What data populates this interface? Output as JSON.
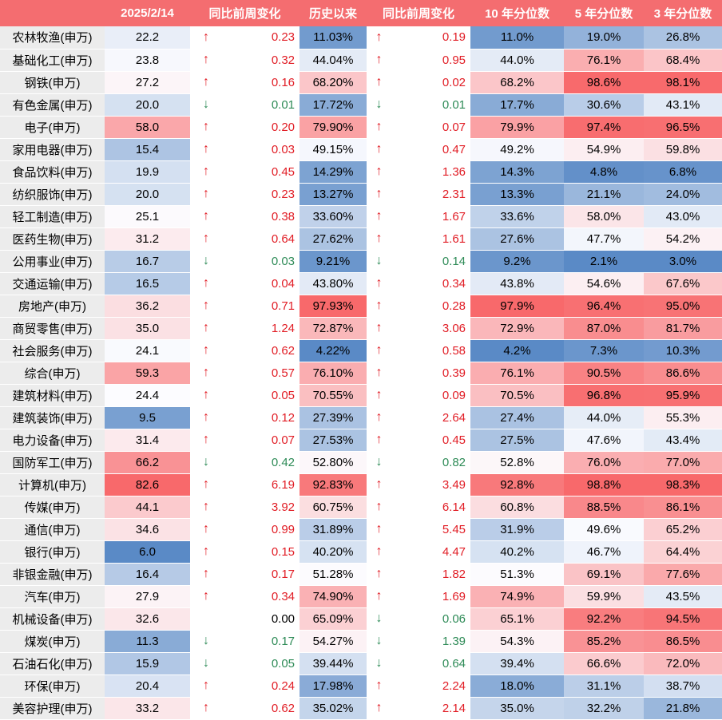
{
  "table": {
    "headers": [
      "",
      "2025/2/14",
      "同比前周变化",
      "历史以来",
      "同比前周变化",
      "10 年分位数",
      "5 年分位数",
      "3 年分位数"
    ],
    "rows": [
      {
        "name": "农林牧渔(申万)",
        "pe": "22.2",
        "pe_dir": "up",
        "pe_chg": "0.23",
        "hist": "11.03%",
        "hist_dir": "up",
        "hist_chg": "0.19",
        "p10": "11.0%",
        "p5": "19.0%",
        "p3": "26.8%"
      },
      {
        "name": "基础化工(申万)",
        "pe": "23.8",
        "pe_dir": "up",
        "pe_chg": "0.32",
        "hist": "44.04%",
        "hist_dir": "up",
        "hist_chg": "0.95",
        "p10": "44.0%",
        "p5": "76.1%",
        "p3": "68.4%"
      },
      {
        "name": "钢铁(申万)",
        "pe": "27.2",
        "pe_dir": "up",
        "pe_chg": "0.16",
        "hist": "68.20%",
        "hist_dir": "up",
        "hist_chg": "0.02",
        "p10": "68.2%",
        "p5": "98.6%",
        "p3": "98.1%"
      },
      {
        "name": "有色金属(申万)",
        "pe": "20.0",
        "pe_dir": "down",
        "pe_chg": "0.01",
        "hist": "17.72%",
        "hist_dir": "down",
        "hist_chg": "0.01",
        "p10": "17.7%",
        "p5": "30.6%",
        "p3": "43.1%"
      },
      {
        "name": "电子(申万)",
        "pe": "58.0",
        "pe_dir": "up",
        "pe_chg": "0.20",
        "hist": "79.90%",
        "hist_dir": "up",
        "hist_chg": "0.07",
        "p10": "79.9%",
        "p5": "97.4%",
        "p3": "96.5%"
      },
      {
        "name": "家用电器(申万)",
        "pe": "15.4",
        "pe_dir": "up",
        "pe_chg": "0.03",
        "hist": "49.15%",
        "hist_dir": "up",
        "hist_chg": "0.47",
        "p10": "49.2%",
        "p5": "54.9%",
        "p3": "59.8%"
      },
      {
        "name": "食品饮料(申万)",
        "pe": "19.9",
        "pe_dir": "up",
        "pe_chg": "0.45",
        "hist": "14.29%",
        "hist_dir": "up",
        "hist_chg": "1.36",
        "p10": "14.3%",
        "p5": "4.8%",
        "p3": "6.8%"
      },
      {
        "name": "纺织服饰(申万)",
        "pe": "20.0",
        "pe_dir": "up",
        "pe_chg": "0.23",
        "hist": "13.27%",
        "hist_dir": "up",
        "hist_chg": "2.31",
        "p10": "13.3%",
        "p5": "21.1%",
        "p3": "24.0%"
      },
      {
        "name": "轻工制造(申万)",
        "pe": "25.1",
        "pe_dir": "up",
        "pe_chg": "0.38",
        "hist": "33.60%",
        "hist_dir": "up",
        "hist_chg": "1.67",
        "p10": "33.6%",
        "p5": "58.0%",
        "p3": "43.0%"
      },
      {
        "name": "医药生物(申万)",
        "pe": "31.2",
        "pe_dir": "up",
        "pe_chg": "0.64",
        "hist": "27.62%",
        "hist_dir": "up",
        "hist_chg": "1.61",
        "p10": "27.6%",
        "p5": "47.7%",
        "p3": "54.2%"
      },
      {
        "name": "公用事业(申万)",
        "pe": "16.7",
        "pe_dir": "down",
        "pe_chg": "0.03",
        "hist": "9.21%",
        "hist_dir": "down",
        "hist_chg": "0.14",
        "p10": "9.2%",
        "p5": "2.1%",
        "p3": "3.0%"
      },
      {
        "name": "交通运输(申万)",
        "pe": "16.5",
        "pe_dir": "up",
        "pe_chg": "0.04",
        "hist": "43.80%",
        "hist_dir": "up",
        "hist_chg": "0.34",
        "p10": "43.8%",
        "p5": "54.6%",
        "p3": "67.6%"
      },
      {
        "name": "房地产(申万)",
        "pe": "36.2",
        "pe_dir": "up",
        "pe_chg": "0.71",
        "hist": "97.93%",
        "hist_dir": "up",
        "hist_chg": "0.28",
        "p10": "97.9%",
        "p5": "96.4%",
        "p3": "95.0%"
      },
      {
        "name": "商贸零售(申万)",
        "pe": "35.0",
        "pe_dir": "up",
        "pe_chg": "1.24",
        "hist": "72.87%",
        "hist_dir": "up",
        "hist_chg": "3.06",
        "p10": "72.9%",
        "p5": "87.0%",
        "p3": "81.7%"
      },
      {
        "name": "社会服务(申万)",
        "pe": "24.1",
        "pe_dir": "up",
        "pe_chg": "0.62",
        "hist": "4.22%",
        "hist_dir": "up",
        "hist_chg": "0.58",
        "p10": "4.2%",
        "p5": "7.3%",
        "p3": "10.3%"
      },
      {
        "name": "综合(申万)",
        "pe": "59.3",
        "pe_dir": "up",
        "pe_chg": "0.57",
        "hist": "76.10%",
        "hist_dir": "up",
        "hist_chg": "0.39",
        "p10": "76.1%",
        "p5": "90.5%",
        "p3": "86.6%"
      },
      {
        "name": "建筑材料(申万)",
        "pe": "24.4",
        "pe_dir": "up",
        "pe_chg": "0.05",
        "hist": "70.55%",
        "hist_dir": "up",
        "hist_chg": "0.09",
        "p10": "70.5%",
        "p5": "96.8%",
        "p3": "95.9%"
      },
      {
        "name": "建筑装饰(申万)",
        "pe": "9.5",
        "pe_dir": "up",
        "pe_chg": "0.12",
        "hist": "27.39%",
        "hist_dir": "up",
        "hist_chg": "2.64",
        "p10": "27.4%",
        "p5": "44.0%",
        "p3": "55.3%"
      },
      {
        "name": "电力设备(申万)",
        "pe": "31.4",
        "pe_dir": "up",
        "pe_chg": "0.07",
        "hist": "27.53%",
        "hist_dir": "up",
        "hist_chg": "0.45",
        "p10": "27.5%",
        "p5": "47.6%",
        "p3": "43.4%"
      },
      {
        "name": "国防军工(申万)",
        "pe": "66.2",
        "pe_dir": "down",
        "pe_chg": "0.42",
        "hist": "52.80%",
        "hist_dir": "down",
        "hist_chg": "0.82",
        "p10": "52.8%",
        "p5": "76.0%",
        "p3": "77.0%"
      },
      {
        "name": "计算机(申万)",
        "pe": "82.6",
        "pe_dir": "up",
        "pe_chg": "6.19",
        "hist": "92.83%",
        "hist_dir": "up",
        "hist_chg": "3.49",
        "p10": "92.8%",
        "p5": "98.8%",
        "p3": "98.3%"
      },
      {
        "name": "传媒(申万)",
        "pe": "44.1",
        "pe_dir": "up",
        "pe_chg": "3.92",
        "hist": "60.75%",
        "hist_dir": "up",
        "hist_chg": "6.14",
        "p10": "60.8%",
        "p5": "88.5%",
        "p3": "86.1%"
      },
      {
        "name": "通信(申万)",
        "pe": "34.6",
        "pe_dir": "up",
        "pe_chg": "0.99",
        "hist": "31.89%",
        "hist_dir": "up",
        "hist_chg": "5.45",
        "p10": "31.9%",
        "p5": "49.6%",
        "p3": "65.2%"
      },
      {
        "name": "银行(申万)",
        "pe": "6.0",
        "pe_dir": "up",
        "pe_chg": "0.15",
        "hist": "40.20%",
        "hist_dir": "up",
        "hist_chg": "4.47",
        "p10": "40.2%",
        "p5": "46.7%",
        "p3": "64.4%"
      },
      {
        "name": "非银金融(申万)",
        "pe": "16.4",
        "pe_dir": "up",
        "pe_chg": "0.17",
        "hist": "51.28%",
        "hist_dir": "up",
        "hist_chg": "1.82",
        "p10": "51.3%",
        "p5": "69.1%",
        "p3": "77.6%"
      },
      {
        "name": "汽车(申万)",
        "pe": "27.9",
        "pe_dir": "up",
        "pe_chg": "0.34",
        "hist": "74.90%",
        "hist_dir": "up",
        "hist_chg": "1.69",
        "p10": "74.9%",
        "p5": "59.9%",
        "p3": "43.5%"
      },
      {
        "name": "机械设备(申万)",
        "pe": "32.6",
        "pe_dir": "flat",
        "pe_chg": "0.00",
        "hist": "65.09%",
        "hist_dir": "down",
        "hist_chg": "0.06",
        "p10": "65.1%",
        "p5": "92.2%",
        "p3": "94.5%"
      },
      {
        "name": "煤炭(申万)",
        "pe": "11.3",
        "pe_dir": "down",
        "pe_chg": "0.17",
        "hist": "54.27%",
        "hist_dir": "down",
        "hist_chg": "1.39",
        "p10": "54.3%",
        "p5": "85.2%",
        "p3": "86.5%"
      },
      {
        "name": "石油石化(申万)",
        "pe": "15.9",
        "pe_dir": "down",
        "pe_chg": "0.05",
        "hist": "39.44%",
        "hist_dir": "down",
        "hist_chg": "0.64",
        "p10": "39.4%",
        "p5": "66.6%",
        "p3": "72.0%"
      },
      {
        "name": "环保(申万)",
        "pe": "20.4",
        "pe_dir": "up",
        "pe_chg": "0.24",
        "hist": "17.98%",
        "hist_dir": "up",
        "hist_chg": "2.24",
        "p10": "18.0%",
        "p5": "31.1%",
        "p3": "38.7%"
      },
      {
        "name": "美容护理(申万)",
        "pe": "33.2",
        "pe_dir": "up",
        "pe_chg": "0.62",
        "hist": "35.02%",
        "hist_dir": "up",
        "hist_chg": "2.14",
        "p10": "35.0%",
        "p5": "32.2%",
        "p3": "21.8%"
      }
    ]
  },
  "symbols": {
    "up": "↑",
    "down": "↓",
    "flat": ""
  },
  "colors": {
    "header_bg": "#f46d70",
    "header_text": "#ffffff",
    "name_bg": "#ececec",
    "scale_low": "#5a8ac6",
    "scale_mid": "#fcfcff",
    "scale_high": "#f8696b",
    "up": "#e11d25",
    "down": "#2e8b57"
  }
}
